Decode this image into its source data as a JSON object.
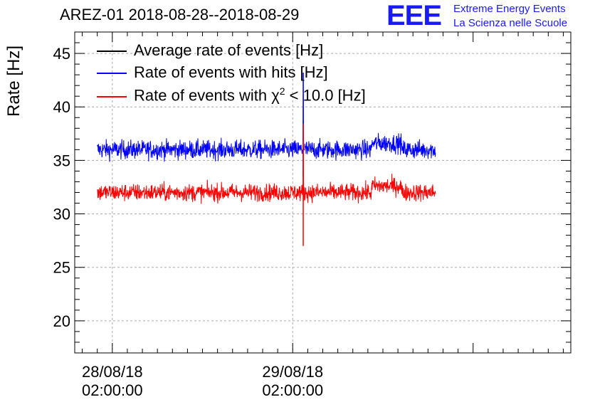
{
  "header": {
    "title": "AREZ-01 2018-08-28--2018-08-29",
    "logo_mark": "EEE",
    "logo_line1": "Extreme Energy Events",
    "logo_line2": "La Scienza nelle Scuole"
  },
  "chart_data": {
    "type": "line",
    "title": "AREZ-01 2018-08-28--2018-08-29",
    "xlabel": "",
    "ylabel": "Rate [Hz]",
    "ylim": [
      17,
      47
    ],
    "yticks": [
      20,
      25,
      30,
      35,
      40,
      45
    ],
    "ytick_labels": [
      "20",
      "25",
      "30",
      "35",
      "40",
      "45"
    ],
    "xlim_hours": [
      -5.0,
      61.0
    ],
    "xticks": [
      {
        "hour": 0,
        "line1": "28/08/18",
        "line2": "02:00:00"
      },
      {
        "hour": 24,
        "line1": "29/08/18",
        "line2": "02:00:00"
      }
    ],
    "grid": true,
    "legend_position": "top-left",
    "series": [
      {
        "name": "Average rate of events [Hz]",
        "color": "#000000",
        "mean": 36.0,
        "noise": 0,
        "start_hour": -2.0,
        "end_hour": 43.0
      },
      {
        "name": "Rate of events with hits [Hz]",
        "color": "#0000ff",
        "mean": 36.0,
        "noise": 0.8,
        "start_hour": -2.0,
        "end_hour": 43.0,
        "spike": {
          "hour": 25.4,
          "min": 33.5,
          "max": 43.2
        }
      },
      {
        "name": "Rate of events with χ² < 10.0 [Hz]",
        "color": "#ff0000",
        "mean": 32.0,
        "noise": 0.75,
        "start_hour": -2.0,
        "end_hour": 43.0,
        "spike": {
          "hour": 25.4,
          "min": 27.0,
          "max": 38.4
        }
      }
    ],
    "legend_labels": {
      "avg": "Average rate of events [Hz]",
      "hits": "Rate of events with hits [Hz]",
      "chi_prefix": "Rate of events with χ",
      "chi_sup": "2",
      "chi_suffix": " < 10.0 [Hz]"
    }
  }
}
